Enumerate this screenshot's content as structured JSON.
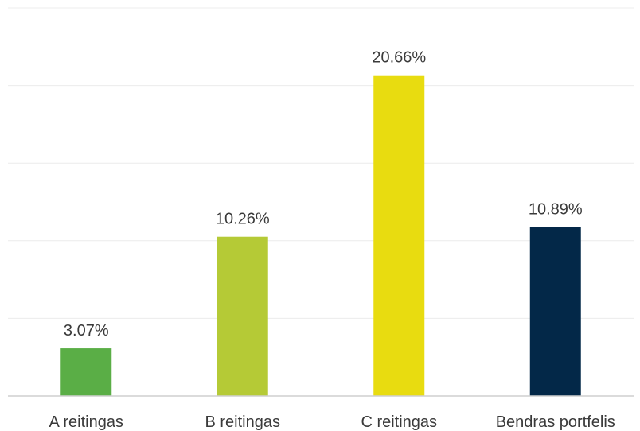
{
  "chart_data": {
    "type": "bar",
    "title": "",
    "xlabel": "",
    "ylabel": "",
    "ylim": [
      0,
      25
    ],
    "grid": true,
    "legend": "none",
    "value_suffix": "%",
    "categories": [
      "A reitingas",
      "B reitingas",
      "C reitingas",
      "Bendras portfelis"
    ],
    "values": [
      3.07,
      10.26,
      20.66,
      10.89
    ],
    "value_labels": [
      "3.07%",
      "10.26%",
      "20.66%",
      "10.89%"
    ],
    "colors": [
      "#5aae46",
      "#b5ca36",
      "#e8dc10",
      "#032848"
    ]
  }
}
